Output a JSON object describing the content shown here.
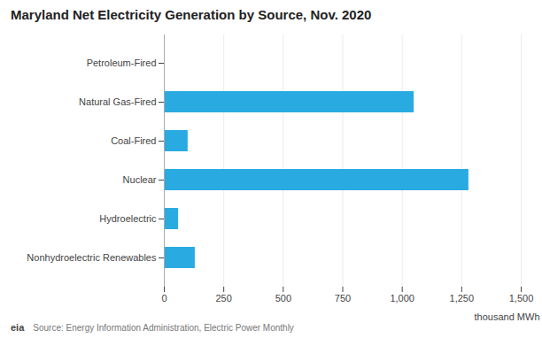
{
  "chart_data": {
    "type": "bar",
    "orientation": "horizontal",
    "title": "Maryland Net Electricity Generation by Source, Nov. 2020",
    "categories": [
      "Petroleum-Fired",
      "Natural Gas-Fired",
      "Coal-Fired",
      "Nuclear",
      "Hydroelectric",
      "Nonhydroelectric Renewables"
    ],
    "values": [
      2,
      1050,
      100,
      1280,
      60,
      130
    ],
    "color": "#29abe2",
    "xlabel": "thousand MWh",
    "xlim": [
      0,
      1500
    ],
    "xticks": [
      0,
      250,
      500,
      750,
      {
        "value": 1000,
        "label": "1,000"
      },
      {
        "value": 1250,
        "label": "1,250"
      },
      {
        "value": 1500,
        "label": "1,500"
      }
    ],
    "grid": true,
    "annotations": [
      "Source: Energy Information Administration, Electric Power Monthly",
      "eia"
    ]
  }
}
